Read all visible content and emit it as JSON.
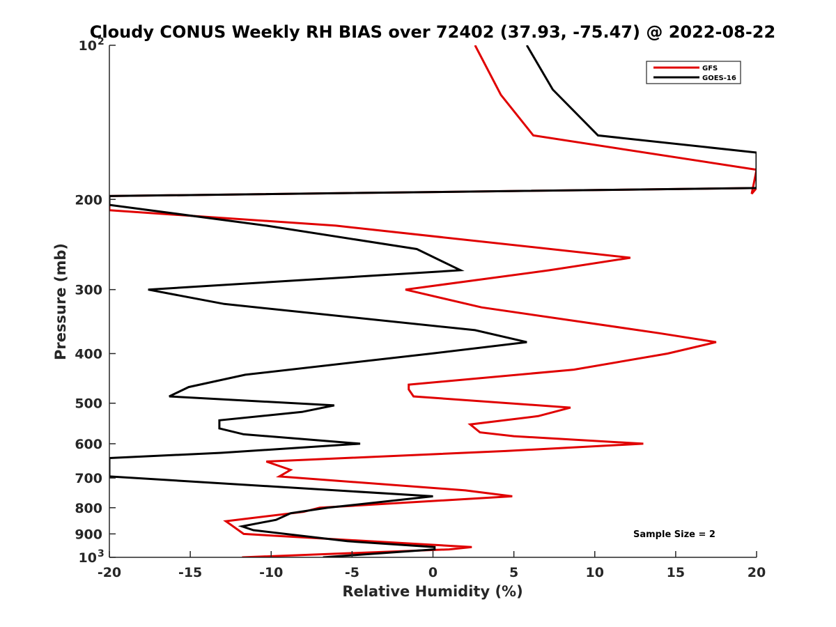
{
  "chart_data": {
    "type": "line",
    "title": "Cloudy CONUS Weekly RH BIAS over 72402 (37.93, -75.47) @ 2022-08-22",
    "xlabel": "Relative Humidity (%)",
    "ylabel": "Pressure (mb)",
    "xlim": [
      -20,
      20
    ],
    "ylim": [
      100,
      1000
    ],
    "y_scale": "log",
    "y_reversed": true,
    "x_ticks": [
      "-20",
      "-15",
      "-10",
      "-5",
      "0",
      "5",
      "10",
      "15",
      "20"
    ],
    "y_ticks": [
      {
        "value": 100,
        "label": "10",
        "sup": "2"
      },
      {
        "value": 200,
        "label": "200",
        "sup": ""
      },
      {
        "value": 300,
        "label": "300",
        "sup": ""
      },
      {
        "value": 400,
        "label": "400",
        "sup": ""
      },
      {
        "value": 500,
        "label": "500",
        "sup": ""
      },
      {
        "value": 600,
        "label": "600",
        "sup": ""
      },
      {
        "value": 700,
        "label": "700",
        "sup": ""
      },
      {
        "value": 800,
        "label": "800",
        "sup": ""
      },
      {
        "value": 900,
        "label": "900",
        "sup": ""
      },
      {
        "value": 1000,
        "label": "10",
        "sup": "3"
      }
    ],
    "grid": false,
    "legend_position": "top-right",
    "series": [
      {
        "name": "GFS",
        "color": "#e00000",
        "points": [
          [
            2.6,
            100
          ],
          [
            4.2,
            125
          ],
          [
            6.2,
            150
          ],
          [
            20,
            175
          ],
          [
            19.7,
            195
          ],
          [
            20,
            190
          ],
          [
            -20,
            197
          ],
          [
            -20,
            210
          ],
          [
            -6,
            225
          ],
          [
            12.2,
            260
          ],
          [
            7.2,
            275
          ],
          [
            -1.7,
            300
          ],
          [
            3,
            325
          ],
          [
            14,
            365
          ],
          [
            17.5,
            380
          ],
          [
            14.5,
            400
          ],
          [
            8.7,
            430
          ],
          [
            -1.5,
            460
          ],
          [
            -1.5,
            470
          ],
          [
            -1.2,
            485
          ],
          [
            8.5,
            510
          ],
          [
            6.5,
            530
          ],
          [
            2.3,
            550
          ],
          [
            2.9,
            570
          ],
          [
            5,
            580
          ],
          [
            13,
            600
          ],
          [
            4.5,
            620
          ],
          [
            -10.3,
            650
          ],
          [
            -8.8,
            675
          ],
          [
            -9.5,
            695
          ],
          [
            2,
            740
          ],
          [
            4.9,
            760
          ],
          [
            -7,
            800
          ],
          [
            -8,
            815
          ],
          [
            -12.8,
            850
          ],
          [
            -11.7,
            900
          ],
          [
            2.4,
            955
          ],
          [
            1,
            965
          ],
          [
            -11.8,
            1000
          ]
        ]
      },
      {
        "name": "GOES-16",
        "color": "#000000",
        "points": [
          [
            5.8,
            100
          ],
          [
            7.4,
            122
          ],
          [
            10.2,
            150
          ],
          [
            20,
            162
          ],
          [
            20,
            190
          ],
          [
            -20,
            197
          ],
          [
            -20,
            205
          ],
          [
            -10.3,
            225
          ],
          [
            -1,
            250
          ],
          [
            1.7,
            275
          ],
          [
            -17.6,
            300
          ],
          [
            -12.9,
            320
          ],
          [
            2.6,
            360
          ],
          [
            5.8,
            380
          ],
          [
            -0.1,
            400
          ],
          [
            -11.6,
            440
          ],
          [
            -15.1,
            465
          ],
          [
            -16.3,
            485
          ],
          [
            -6.1,
            505
          ],
          [
            -8.1,
            520
          ],
          [
            -13.2,
            540
          ],
          [
            -13.2,
            560
          ],
          [
            -11.7,
            575
          ],
          [
            -4.5,
            600
          ],
          [
            -13.1,
            625
          ],
          [
            -20,
            640
          ],
          [
            -20,
            695
          ],
          [
            0,
            760
          ],
          [
            -6.5,
            800
          ],
          [
            -8.8,
            820
          ],
          [
            -9.7,
            845
          ],
          [
            -11.8,
            870
          ],
          [
            -11.1,
            885
          ],
          [
            -5.3,
            930
          ],
          [
            0.1,
            955
          ],
          [
            0.1,
            965
          ],
          [
            -6.8,
            1000
          ]
        ]
      }
    ],
    "annotation": "Sample Size = 2"
  }
}
